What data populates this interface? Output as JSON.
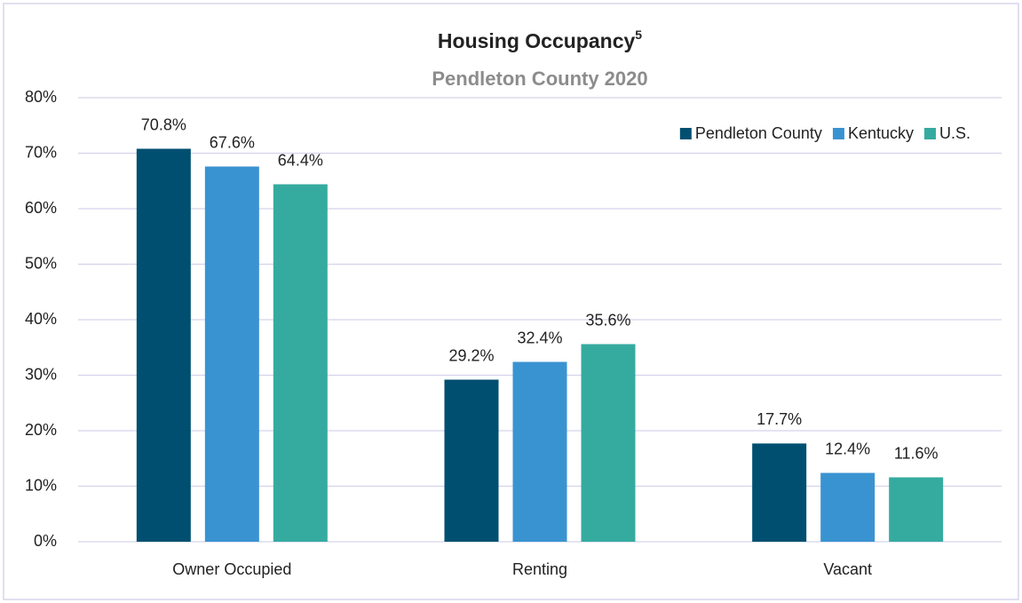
{
  "chart_data": {
    "type": "bar",
    "title": "Housing Occupancy",
    "title_superscript": "5",
    "subtitle": "Pendleton County 2020",
    "categories": [
      "Owner Occupied",
      "Renting",
      "Vacant"
    ],
    "series": [
      {
        "name": "Pendleton County",
        "color": "#004f71",
        "values": [
          70.8,
          29.2,
          17.7
        ],
        "value_labels": [
          "70.8%",
          "29.2%",
          "17.7%"
        ]
      },
      {
        "name": "Kentucky",
        "color": "#3a93d1",
        "values": [
          67.6,
          32.4,
          12.4
        ],
        "value_labels": [
          "67.6%",
          "32.4%",
          "12.4%"
        ]
      },
      {
        "name": "U.S.",
        "color": "#35aba0",
        "values": [
          64.4,
          35.6,
          11.6
        ],
        "value_labels": [
          "64.4%",
          "35.6%",
          "11.6%"
        ]
      }
    ],
    "ylim": [
      0,
      80
    ],
    "yticks": [
      {
        "value": 0,
        "label": "0%"
      },
      {
        "value": 10,
        "label": "10%"
      },
      {
        "value": 20,
        "label": "20%"
      },
      {
        "value": 30,
        "label": "30%"
      },
      {
        "value": 40,
        "label": "40%"
      },
      {
        "value": 50,
        "label": "50%"
      },
      {
        "value": 60,
        "label": "60%"
      },
      {
        "value": 70,
        "label": "70%"
      },
      {
        "value": 80,
        "label": "80%"
      }
    ],
    "grid": true,
    "legend": "top-right"
  }
}
